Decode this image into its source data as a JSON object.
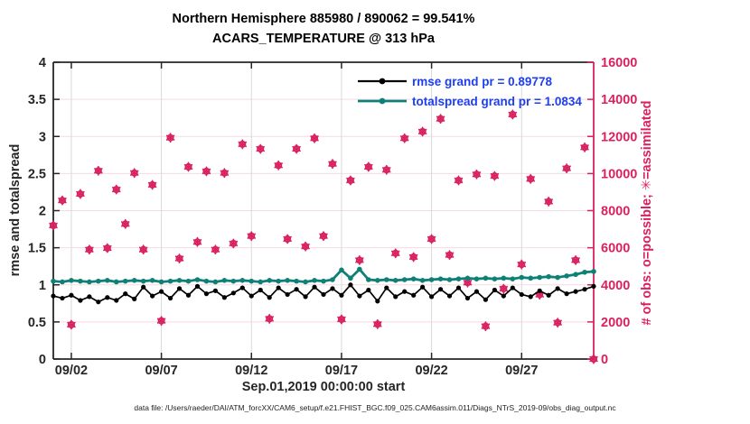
{
  "title": {
    "line1": "Northern Hemisphere 885980 / 890062 = 99.541%",
    "line2": "ACARS_TEMPERATURE @ 313 hPa"
  },
  "footer": "data file: /Users/raeder/DAI/ATM_forcXX/CAM6_setup/f.e21.FHIST_BGC.f09_025.CAM6assim.011/Diags_NTrS_2019-09/obs_diag_output.nc",
  "colors": {
    "accent_pink": "#d9215f",
    "teal": "#0f8077",
    "black": "#000000",
    "legend_text": "#1d3ff2",
    "axis_dark": "#262626",
    "grid_gray": "#d9d9d9",
    "grid_pink": "#f7d9e4"
  },
  "chart_data": {
    "type": "line",
    "title": "Northern Hemisphere 885980 / 890062 = 99.541% | ACARS_TEMPERATURE @ 313 hPa",
    "xlabel": "Sep.01,2019 00:00:00 start",
    "ylabel_left": "rmse and totalspread",
    "ylabel_right": "# of obs: o=possible; ✳=assimilated",
    "xlim_days": [
      0,
      30
    ],
    "ylim_left": [
      0,
      4
    ],
    "ylim_right": [
      0,
      16000
    ],
    "grid": "on",
    "legend_position": "top-right-inside",
    "x_ticks": [
      {
        "day": 1,
        "label": "09/02"
      },
      {
        "day": 6,
        "label": "09/07"
      },
      {
        "day": 11,
        "label": "09/12"
      },
      {
        "day": 16,
        "label": "09/17"
      },
      {
        "day": 21,
        "label": "09/22"
      },
      {
        "day": 26,
        "label": "09/27"
      }
    ],
    "y_left_ticks": [
      {
        "value": 0,
        "label": "0"
      },
      {
        "value": 0.5,
        "label": "0.5"
      },
      {
        "value": 1,
        "label": "1"
      },
      {
        "value": 1.5,
        "label": "1.5"
      },
      {
        "value": 2,
        "label": "2"
      },
      {
        "value": 2.5,
        "label": "2.5"
      },
      {
        "value": 3,
        "label": "3"
      },
      {
        "value": 3.5,
        "label": "3.5"
      },
      {
        "value": 4,
        "label": "4"
      }
    ],
    "y_right_ticks": [
      {
        "value": 0,
        "label": "0"
      },
      {
        "value": 2000,
        "label": "2000"
      },
      {
        "value": 4000,
        "label": "4000"
      },
      {
        "value": 6000,
        "label": "6000"
      },
      {
        "value": 8000,
        "label": "8000"
      },
      {
        "value": 10000,
        "label": "10000"
      },
      {
        "value": 12000,
        "label": "12000"
      },
      {
        "value": 14000,
        "label": "14000"
      },
      {
        "value": 16000,
        "label": "16000"
      }
    ],
    "x_days": [
      0,
      0.5,
      1,
      1.5,
      2,
      2.5,
      3,
      3.5,
      4,
      4.5,
      5,
      5.5,
      6,
      6.5,
      7,
      7.5,
      8,
      8.5,
      9,
      9.5,
      10,
      10.5,
      11,
      11.5,
      12,
      12.5,
      13,
      13.5,
      14,
      14.5,
      15,
      15.5,
      16,
      16.5,
      17,
      17.5,
      18,
      18.5,
      19,
      19.5,
      20,
      20.5,
      21,
      21.5,
      22,
      22.5,
      23,
      23.5,
      24,
      24.5,
      25,
      25.5,
      26,
      26.5,
      27,
      27.5,
      28,
      28.5,
      29,
      29.5,
      30
    ],
    "series": [
      {
        "name": "rmse",
        "legend": "rmse grand pr = 0.89778",
        "grand_pr": 0.89778,
        "axis": "left",
        "color": "#000000",
        "marker": "dot",
        "values": [
          0.85,
          0.82,
          0.86,
          0.79,
          0.84,
          0.77,
          0.83,
          0.79,
          0.88,
          0.81,
          0.97,
          0.85,
          0.91,
          0.82,
          0.95,
          0.86,
          0.98,
          0.88,
          0.92,
          0.83,
          0.89,
          0.96,
          0.85,
          0.93,
          0.83,
          0.96,
          0.87,
          0.94,
          0.84,
          0.97,
          0.87,
          0.95,
          0.86,
          1.0,
          0.85,
          0.93,
          0.78,
          0.96,
          0.84,
          0.91,
          0.86,
          0.97,
          0.84,
          0.94,
          0.85,
          0.96,
          0.82,
          0.91,
          0.8,
          0.93,
          0.85,
          0.96,
          0.87,
          0.84,
          0.92,
          0.86,
          0.95,
          0.88,
          0.91,
          0.94,
          0.98
        ]
      },
      {
        "name": "totalspread",
        "legend": "totalspread grand pr = 1.0834",
        "grand_pr": 1.0834,
        "axis": "left",
        "color": "#0f8077",
        "marker": "dot",
        "values": [
          1.05,
          1.04,
          1.06,
          1.05,
          1.04,
          1.05,
          1.06,
          1.04,
          1.05,
          1.06,
          1.05,
          1.06,
          1.04,
          1.05,
          1.06,
          1.05,
          1.07,
          1.05,
          1.04,
          1.06,
          1.05,
          1.06,
          1.05,
          1.04,
          1.06,
          1.05,
          1.06,
          1.05,
          1.04,
          1.06,
          1.05,
          1.07,
          1.2,
          1.09,
          1.21,
          1.07,
          1.06,
          1.07,
          1.06,
          1.07,
          1.08,
          1.06,
          1.07,
          1.08,
          1.07,
          1.08,
          1.09,
          1.08,
          1.09,
          1.08,
          1.09,
          1.08,
          1.1,
          1.09,
          1.1,
          1.11,
          1.1,
          1.12,
          1.14,
          1.17,
          1.18
        ]
      },
      {
        "name": "obs possible (o)",
        "total": 890062,
        "axis": "right",
        "color": "#d9215f",
        "marker": "o",
        "values": [
          7200,
          8550,
          1850,
          8900,
          5900,
          10150,
          5980,
          9140,
          7280,
          10030,
          5900,
          9390,
          2060,
          11930,
          5420,
          10360,
          6310,
          10120,
          5900,
          10030,
          6230,
          11580,
          6630,
          11330,
          2170,
          10440,
          6470,
          11330,
          6070,
          11900,
          6630,
          10520,
          2140,
          9630,
          5330,
          10360,
          1880,
          10200,
          5700,
          11900,
          5500,
          12260,
          6470,
          12950,
          5610,
          9630,
          4120,
          9955,
          1770,
          9870,
          3790,
          13180,
          5100,
          9710,
          3470,
          8490,
          1960,
          10280,
          5330,
          11410,
          0
        ]
      },
      {
        "name": "obs assimilated (*)",
        "total": 885980,
        "axis": "right",
        "color": "#d9215f",
        "marker": "*",
        "values": [
          7200,
          8550,
          1850,
          8900,
          5900,
          10150,
          5980,
          9140,
          7280,
          10030,
          5900,
          9390,
          2060,
          11930,
          5420,
          10360,
          6310,
          10120,
          5900,
          10030,
          6230,
          11580,
          6630,
          11330,
          2170,
          10440,
          6470,
          11330,
          6070,
          11900,
          6630,
          10520,
          2140,
          9630,
          5330,
          10360,
          1880,
          10200,
          5700,
          11900,
          5500,
          12260,
          6470,
          12950,
          5610,
          9630,
          4120,
          9955,
          1770,
          9870,
          3790,
          13180,
          5100,
          9710,
          3470,
          8490,
          1960,
          10280,
          5330,
          11410,
          0
        ]
      }
    ]
  }
}
